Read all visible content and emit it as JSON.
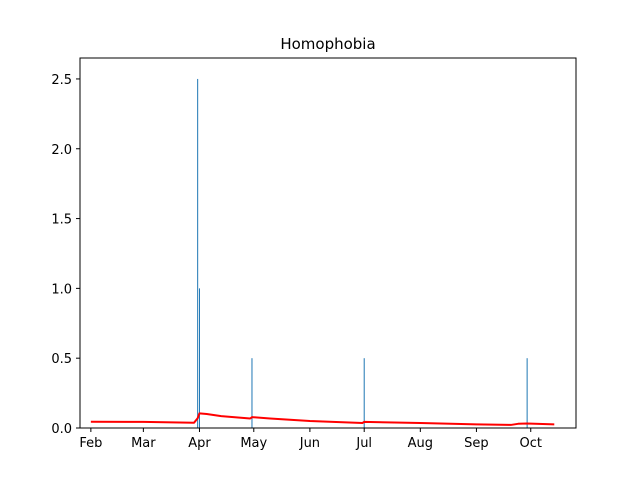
{
  "chart_data": {
    "type": "bar",
    "title": "Homophobia",
    "xlabel": "",
    "ylabel": "",
    "x_tick_labels": [
      "Feb",
      "Mar",
      "Apr",
      "May",
      "Jun",
      "Jul",
      "Aug",
      "Sep",
      "Oct"
    ],
    "x_tick_dates": [
      "2020-02-01",
      "2020-03-01",
      "2020-04-01",
      "2020-05-01",
      "2020-06-01",
      "2020-07-01",
      "2020-08-01",
      "2020-09-01",
      "2020-10-01"
    ],
    "xlim": [
      "2020-01-26",
      "2020-10-26"
    ],
    "y_ticks": [
      0.0,
      0.5,
      1.0,
      1.5,
      2.0,
      2.5
    ],
    "y_tick_labels": [
      "0.0",
      "0.5",
      "1.0",
      "1.5",
      "2.0",
      "2.5"
    ],
    "ylim": [
      0,
      2.65
    ],
    "grid": false,
    "series": [
      {
        "kind": "bar",
        "color": "#1f77b4",
        "points": [
          {
            "x": "2020-03-31",
            "y": 2.5
          },
          {
            "x": "2020-04-01",
            "y": 1.0
          },
          {
            "x": "2020-04-30",
            "y": 0.5
          },
          {
            "x": "2020-07-01",
            "y": 0.5
          },
          {
            "x": "2020-09-29",
            "y": 0.5
          }
        ]
      },
      {
        "kind": "line",
        "color": "#ff0000",
        "points": [
          {
            "x": "2020-02-01",
            "y": 0.045
          },
          {
            "x": "2020-03-01",
            "y": 0.044
          },
          {
            "x": "2020-03-29",
            "y": 0.038
          },
          {
            "x": "2020-03-31",
            "y": 0.07
          },
          {
            "x": "2020-04-01",
            "y": 0.105
          },
          {
            "x": "2020-04-05",
            "y": 0.1
          },
          {
            "x": "2020-04-13",
            "y": 0.085
          },
          {
            "x": "2020-04-29",
            "y": 0.068
          },
          {
            "x": "2020-04-30",
            "y": 0.078
          },
          {
            "x": "2020-05-10",
            "y": 0.068
          },
          {
            "x": "2020-06-01",
            "y": 0.05
          },
          {
            "x": "2020-06-30",
            "y": 0.036
          },
          {
            "x": "2020-07-01",
            "y": 0.044
          },
          {
            "x": "2020-08-01",
            "y": 0.036
          },
          {
            "x": "2020-09-01",
            "y": 0.026
          },
          {
            "x": "2020-09-20",
            "y": 0.022
          },
          {
            "x": "2020-09-24",
            "y": 0.03
          },
          {
            "x": "2020-09-29",
            "y": 0.032
          },
          {
            "x": "2020-10-14",
            "y": 0.026
          }
        ]
      }
    ]
  }
}
